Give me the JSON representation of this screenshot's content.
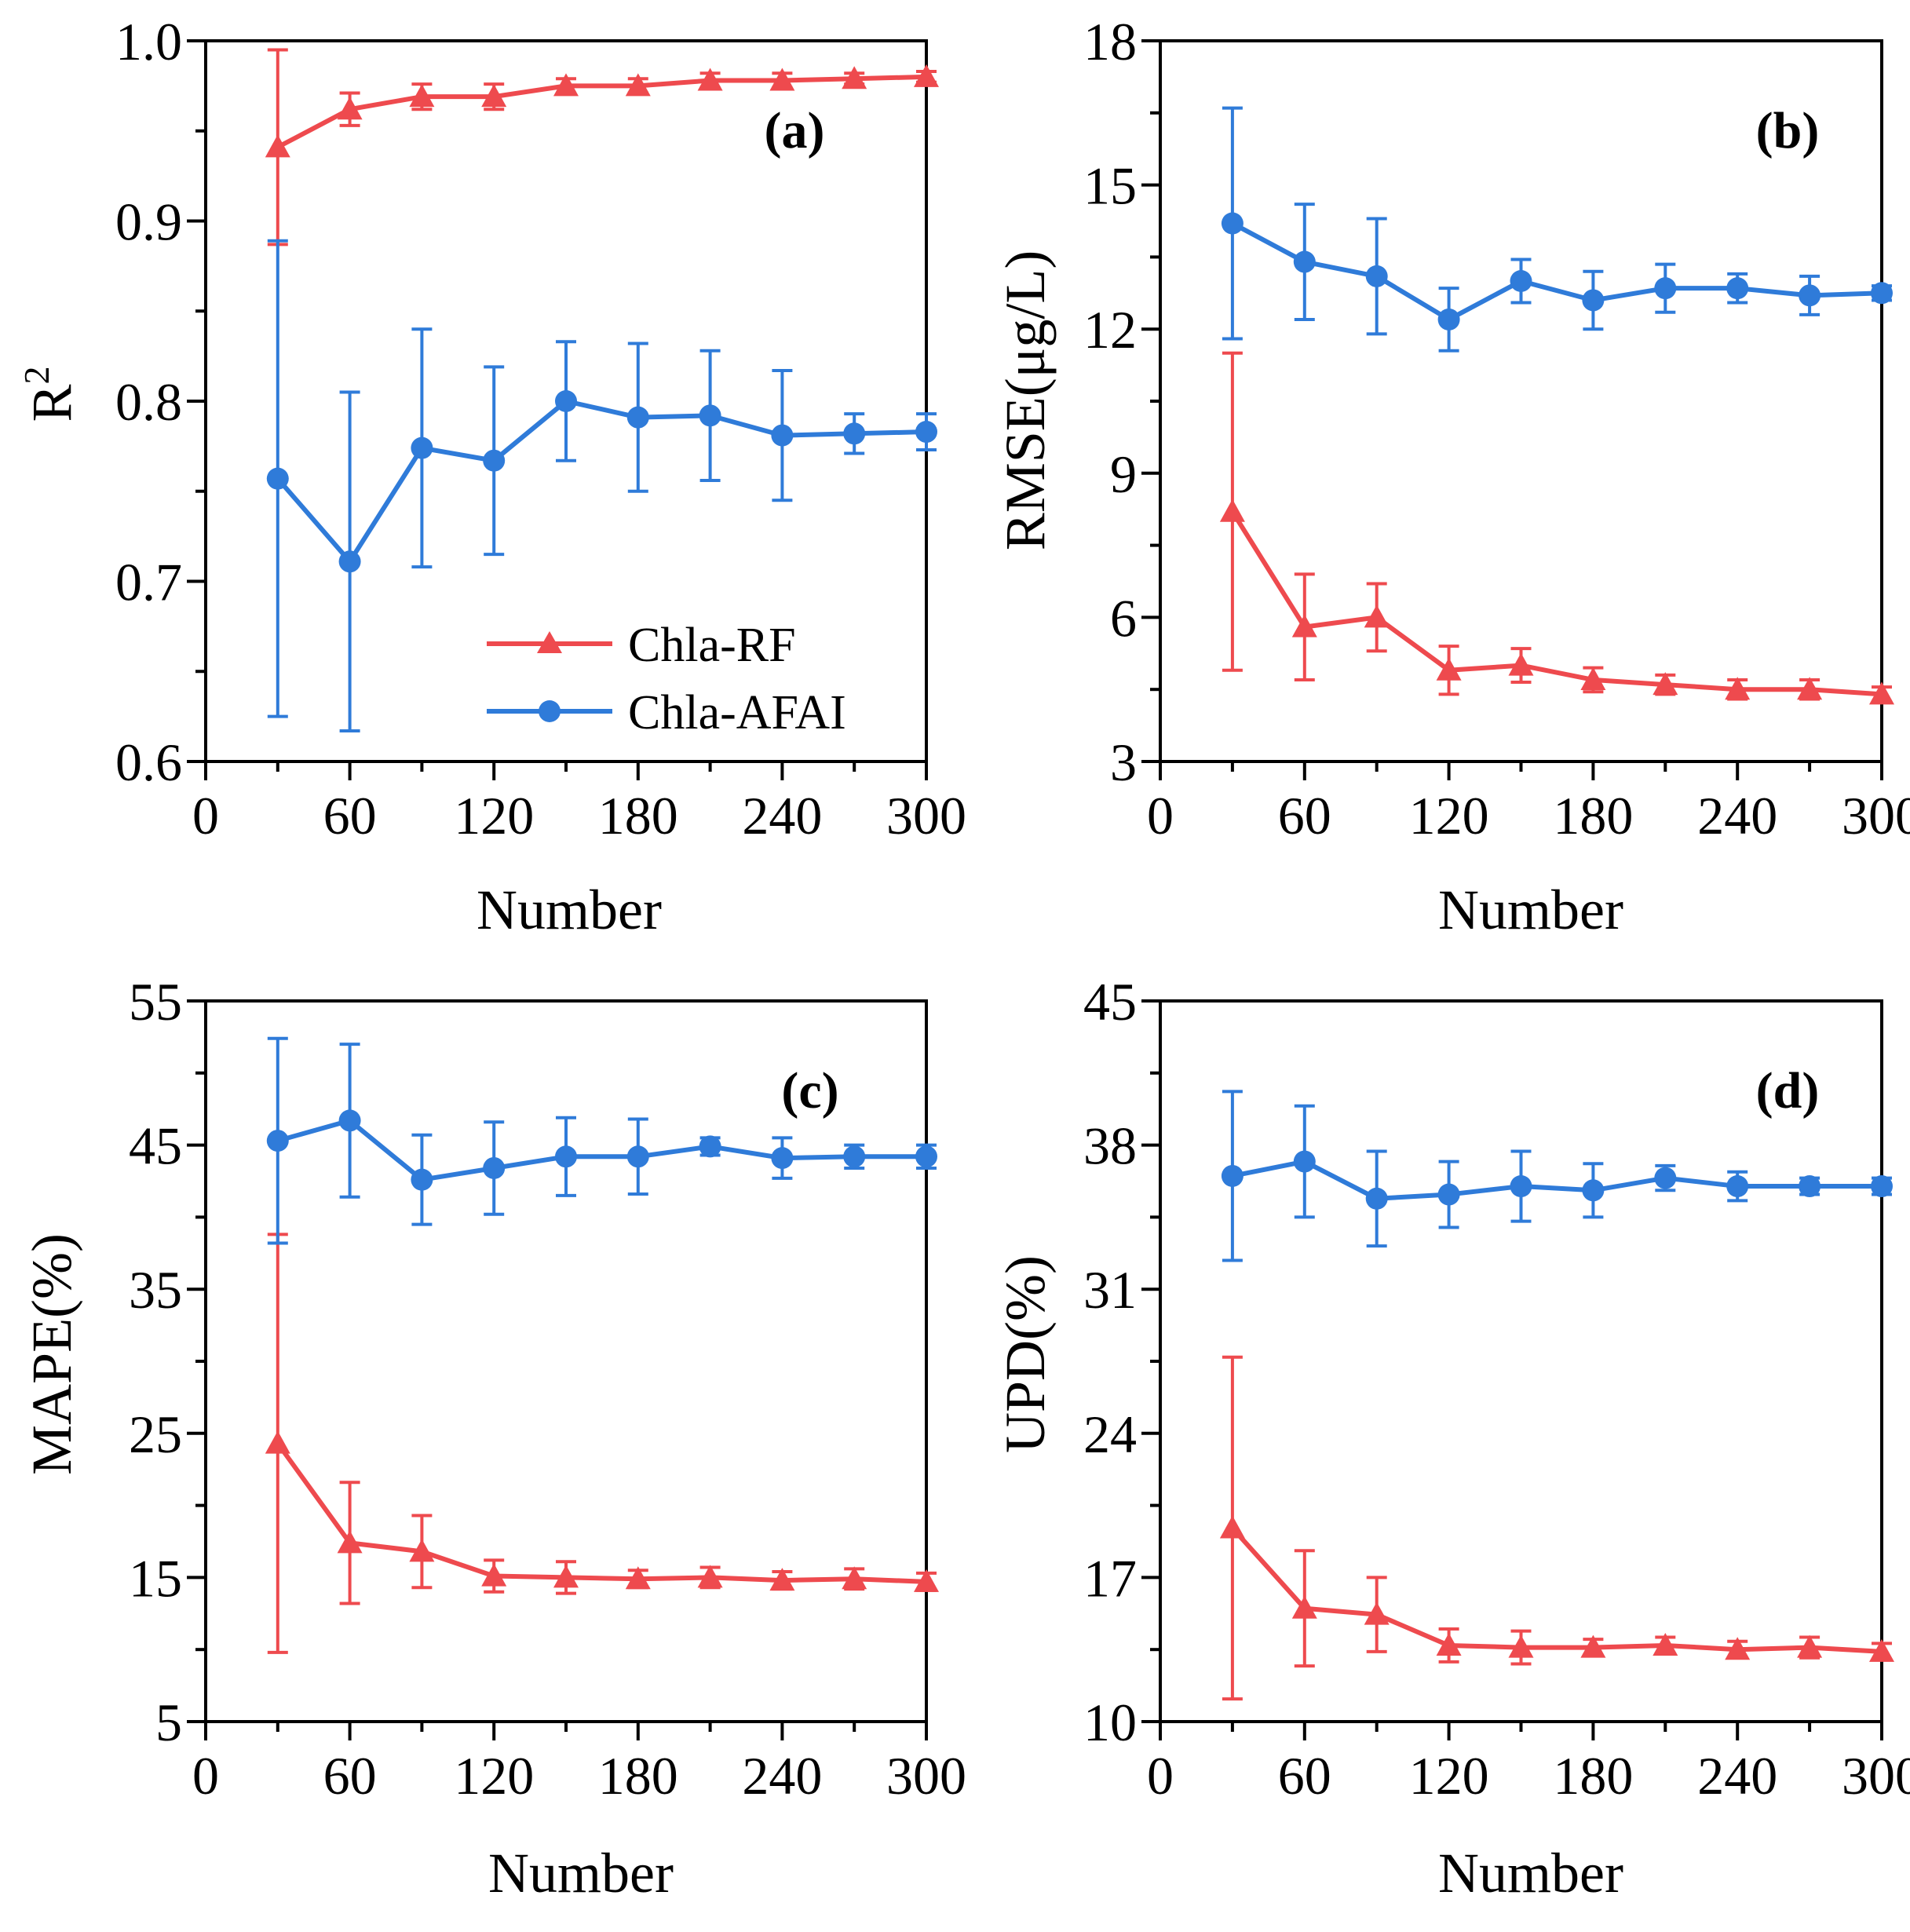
{
  "colors": {
    "rf": "#ee4a4e",
    "afai": "#2f7bd9",
    "axis": "#000000"
  },
  "legend": {
    "rf_label": "Chla-RF",
    "afai_label": "Chla-AFAI",
    "location": "bottom-right of panel (a)"
  },
  "chart_data": [
    {
      "type": "line",
      "panel": "a",
      "label": "(a)",
      "xlabel": "Number",
      "ylabel": "R",
      "ylabel_sup": "2",
      "xlim": [
        0,
        300
      ],
      "ylim": [
        0.6,
        1.0
      ],
      "xticks": [
        "0",
        "60",
        "120",
        "180",
        "240",
        "300"
      ],
      "yticks": [
        "0.6",
        "0.7",
        "0.8",
        "0.9",
        "1.0"
      ],
      "x": [
        30,
        60,
        90,
        120,
        150,
        180,
        210,
        240,
        270,
        300
      ],
      "series": [
        {
          "name": "Chla-RF",
          "values": [
            0.941,
            0.962,
            0.969,
            0.969,
            0.975,
            0.975,
            0.978,
            0.978,
            0.979,
            0.98
          ],
          "errors": [
            0.054,
            0.009,
            0.007,
            0.007,
            0.004,
            0.004,
            0.004,
            0.004,
            0.003,
            0.003
          ]
        },
        {
          "name": "Chla-AFAI",
          "values": [
            0.757,
            0.711,
            0.774,
            0.767,
            0.8,
            0.791,
            0.792,
            0.781,
            0.782,
            0.783
          ],
          "errors": [
            0.132,
            0.094,
            0.066,
            0.052,
            0.033,
            0.041,
            0.036,
            0.036,
            0.011,
            0.01
          ]
        }
      ]
    },
    {
      "type": "line",
      "panel": "b",
      "label": "(b)",
      "xlabel": "Number",
      "ylabel": "RMSE(μg/L)",
      "ylabel_sup": "",
      "xlim": [
        0,
        300
      ],
      "ylim": [
        3,
        18
      ],
      "xticks": [
        "0",
        "60",
        "120",
        "180",
        "240",
        "300"
      ],
      "yticks": [
        "3",
        "6",
        "9",
        "12",
        "15",
        "18"
      ],
      "x": [
        30,
        60,
        90,
        120,
        150,
        180,
        210,
        240,
        270,
        300
      ],
      "series": [
        {
          "name": "Chla-RF",
          "values": [
            8.2,
            5.8,
            6.0,
            4.9,
            5.0,
            4.7,
            4.6,
            4.5,
            4.5,
            4.4
          ],
          "errors": [
            3.3,
            1.1,
            0.7,
            0.5,
            0.35,
            0.25,
            0.2,
            0.2,
            0.2,
            0.15
          ]
        },
        {
          "name": "Chla-AFAI",
          "values": [
            14.2,
            13.4,
            13.1,
            12.2,
            13.0,
            12.6,
            12.85,
            12.85,
            12.7,
            12.75
          ],
          "errors": [
            2.4,
            1.2,
            1.2,
            0.65,
            0.45,
            0.6,
            0.5,
            0.3,
            0.4,
            0.15
          ]
        }
      ]
    },
    {
      "type": "line",
      "panel": "c",
      "label": "(c)",
      "xlabel": "Number",
      "ylabel": "MAPE(%)",
      "ylabel_sup": "",
      "xlim": [
        0,
        300
      ],
      "ylim": [
        5,
        55
      ],
      "xticks": [
        "0",
        "60",
        "120",
        "180",
        "240",
        "300"
      ],
      "yticks": [
        "5",
        "15",
        "25",
        "35",
        "45",
        "55"
      ],
      "x": [
        30,
        60,
        90,
        120,
        150,
        180,
        210,
        240,
        270,
        300
      ],
      "series": [
        {
          "name": "Chla-RF",
          "values": [
            24.3,
            17.4,
            16.8,
            15.1,
            15.0,
            14.9,
            15.0,
            14.8,
            14.9,
            14.7
          ],
          "errors": [
            14.5,
            4.2,
            2.5,
            1.1,
            1.1,
            0.6,
            0.7,
            0.6,
            0.7,
            0.6
          ]
        },
        {
          "name": "Chla-AFAI",
          "values": [
            45.3,
            46.7,
            42.6,
            43.4,
            44.2,
            44.2,
            44.9,
            44.1,
            44.2,
            44.2
          ],
          "errors": [
            7.1,
            5.3,
            3.1,
            3.2,
            2.7,
            2.6,
            0.6,
            1.4,
            0.8,
            0.8
          ]
        }
      ]
    },
    {
      "type": "line",
      "panel": "d",
      "label": "(d)",
      "xlabel": "Number",
      "ylabel": "UPD(%)",
      "ylabel_sup": "",
      "xlim": [
        0,
        300
      ],
      "ylim": [
        10,
        45
      ],
      "xticks": [
        "0",
        "60",
        "120",
        "180",
        "240",
        "300"
      ],
      "yticks": [
        "10",
        "17",
        "24",
        "31",
        "38",
        "45"
      ],
      "x": [
        30,
        60,
        90,
        120,
        150,
        180,
        210,
        240,
        270,
        300
      ],
      "series": [
        {
          "name": "Chla-RF",
          "values": [
            19.4,
            15.5,
            15.2,
            13.7,
            13.6,
            13.6,
            13.7,
            13.5,
            13.6,
            13.4
          ],
          "errors": [
            8.3,
            2.8,
            1.8,
            0.8,
            0.8,
            0.4,
            0.4,
            0.4,
            0.5,
            0.4
          ]
        },
        {
          "name": "Chla-AFAI",
          "values": [
            36.5,
            37.2,
            35.4,
            35.6,
            36.0,
            35.8,
            36.4,
            36.0,
            36.0,
            36.0
          ],
          "errors": [
            4.1,
            2.7,
            2.3,
            1.6,
            1.7,
            1.3,
            0.6,
            0.7,
            0.4,
            0.4
          ]
        }
      ]
    }
  ]
}
